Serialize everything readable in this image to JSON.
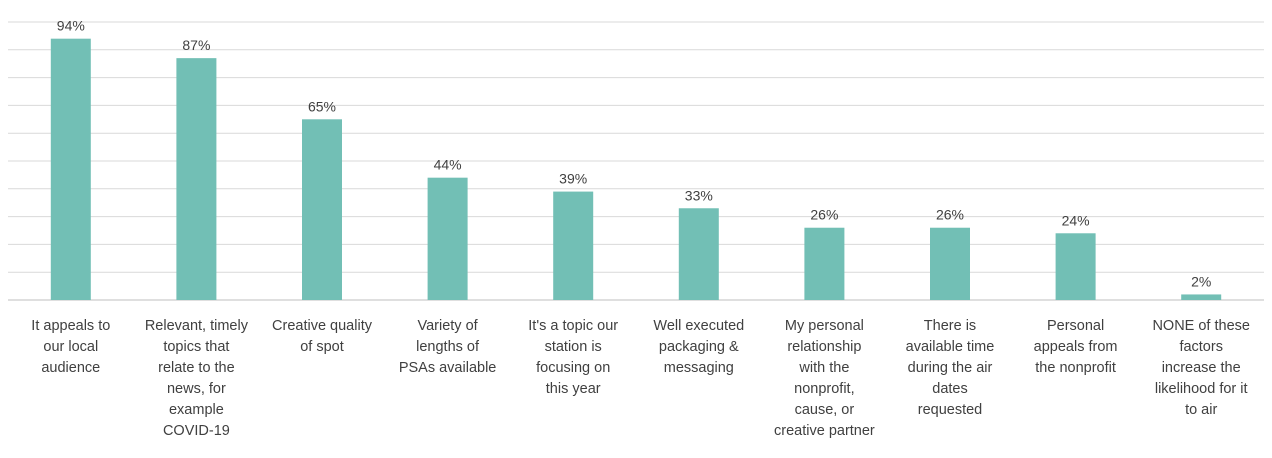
{
  "chart_data": {
    "type": "bar",
    "title": "",
    "xlabel": "",
    "ylabel": "",
    "ylim": [
      0,
      100
    ],
    "grid": true,
    "legend": "none",
    "bar_color": "#72bfb5",
    "value_format": "percent",
    "categories": [
      [
        "It appeals to",
        "our local",
        "audience"
      ],
      [
        "Relevant, timely",
        "topics that",
        "relate to the",
        "news, for",
        "example",
        "COVID-19"
      ],
      [
        "Creative quality",
        "of spot"
      ],
      [
        "Variety of",
        "lengths of",
        "PSAs available"
      ],
      [
        "It's a topic our",
        "station is",
        "focusing on",
        "this year"
      ],
      [
        "Well executed",
        "packaging &",
        "messaging"
      ],
      [
        "My personal",
        "relationship",
        "with the",
        "nonprofit,",
        "cause, or",
        "creative partner"
      ],
      [
        "There is",
        "available time",
        "during the air",
        "dates",
        "requested"
      ],
      [
        "Personal",
        "appeals from",
        "the nonprofit"
      ],
      [
        "NONE of these",
        "factors",
        "increase the",
        "likelihood for it",
        "to air"
      ]
    ],
    "values": [
      94,
      87,
      65,
      44,
      39,
      33,
      26,
      26,
      24,
      2
    ],
    "data_labels": [
      "94%",
      "87%",
      "65%",
      "44%",
      "39%",
      "33%",
      "26%",
      "26%",
      "24%",
      "2%"
    ]
  }
}
